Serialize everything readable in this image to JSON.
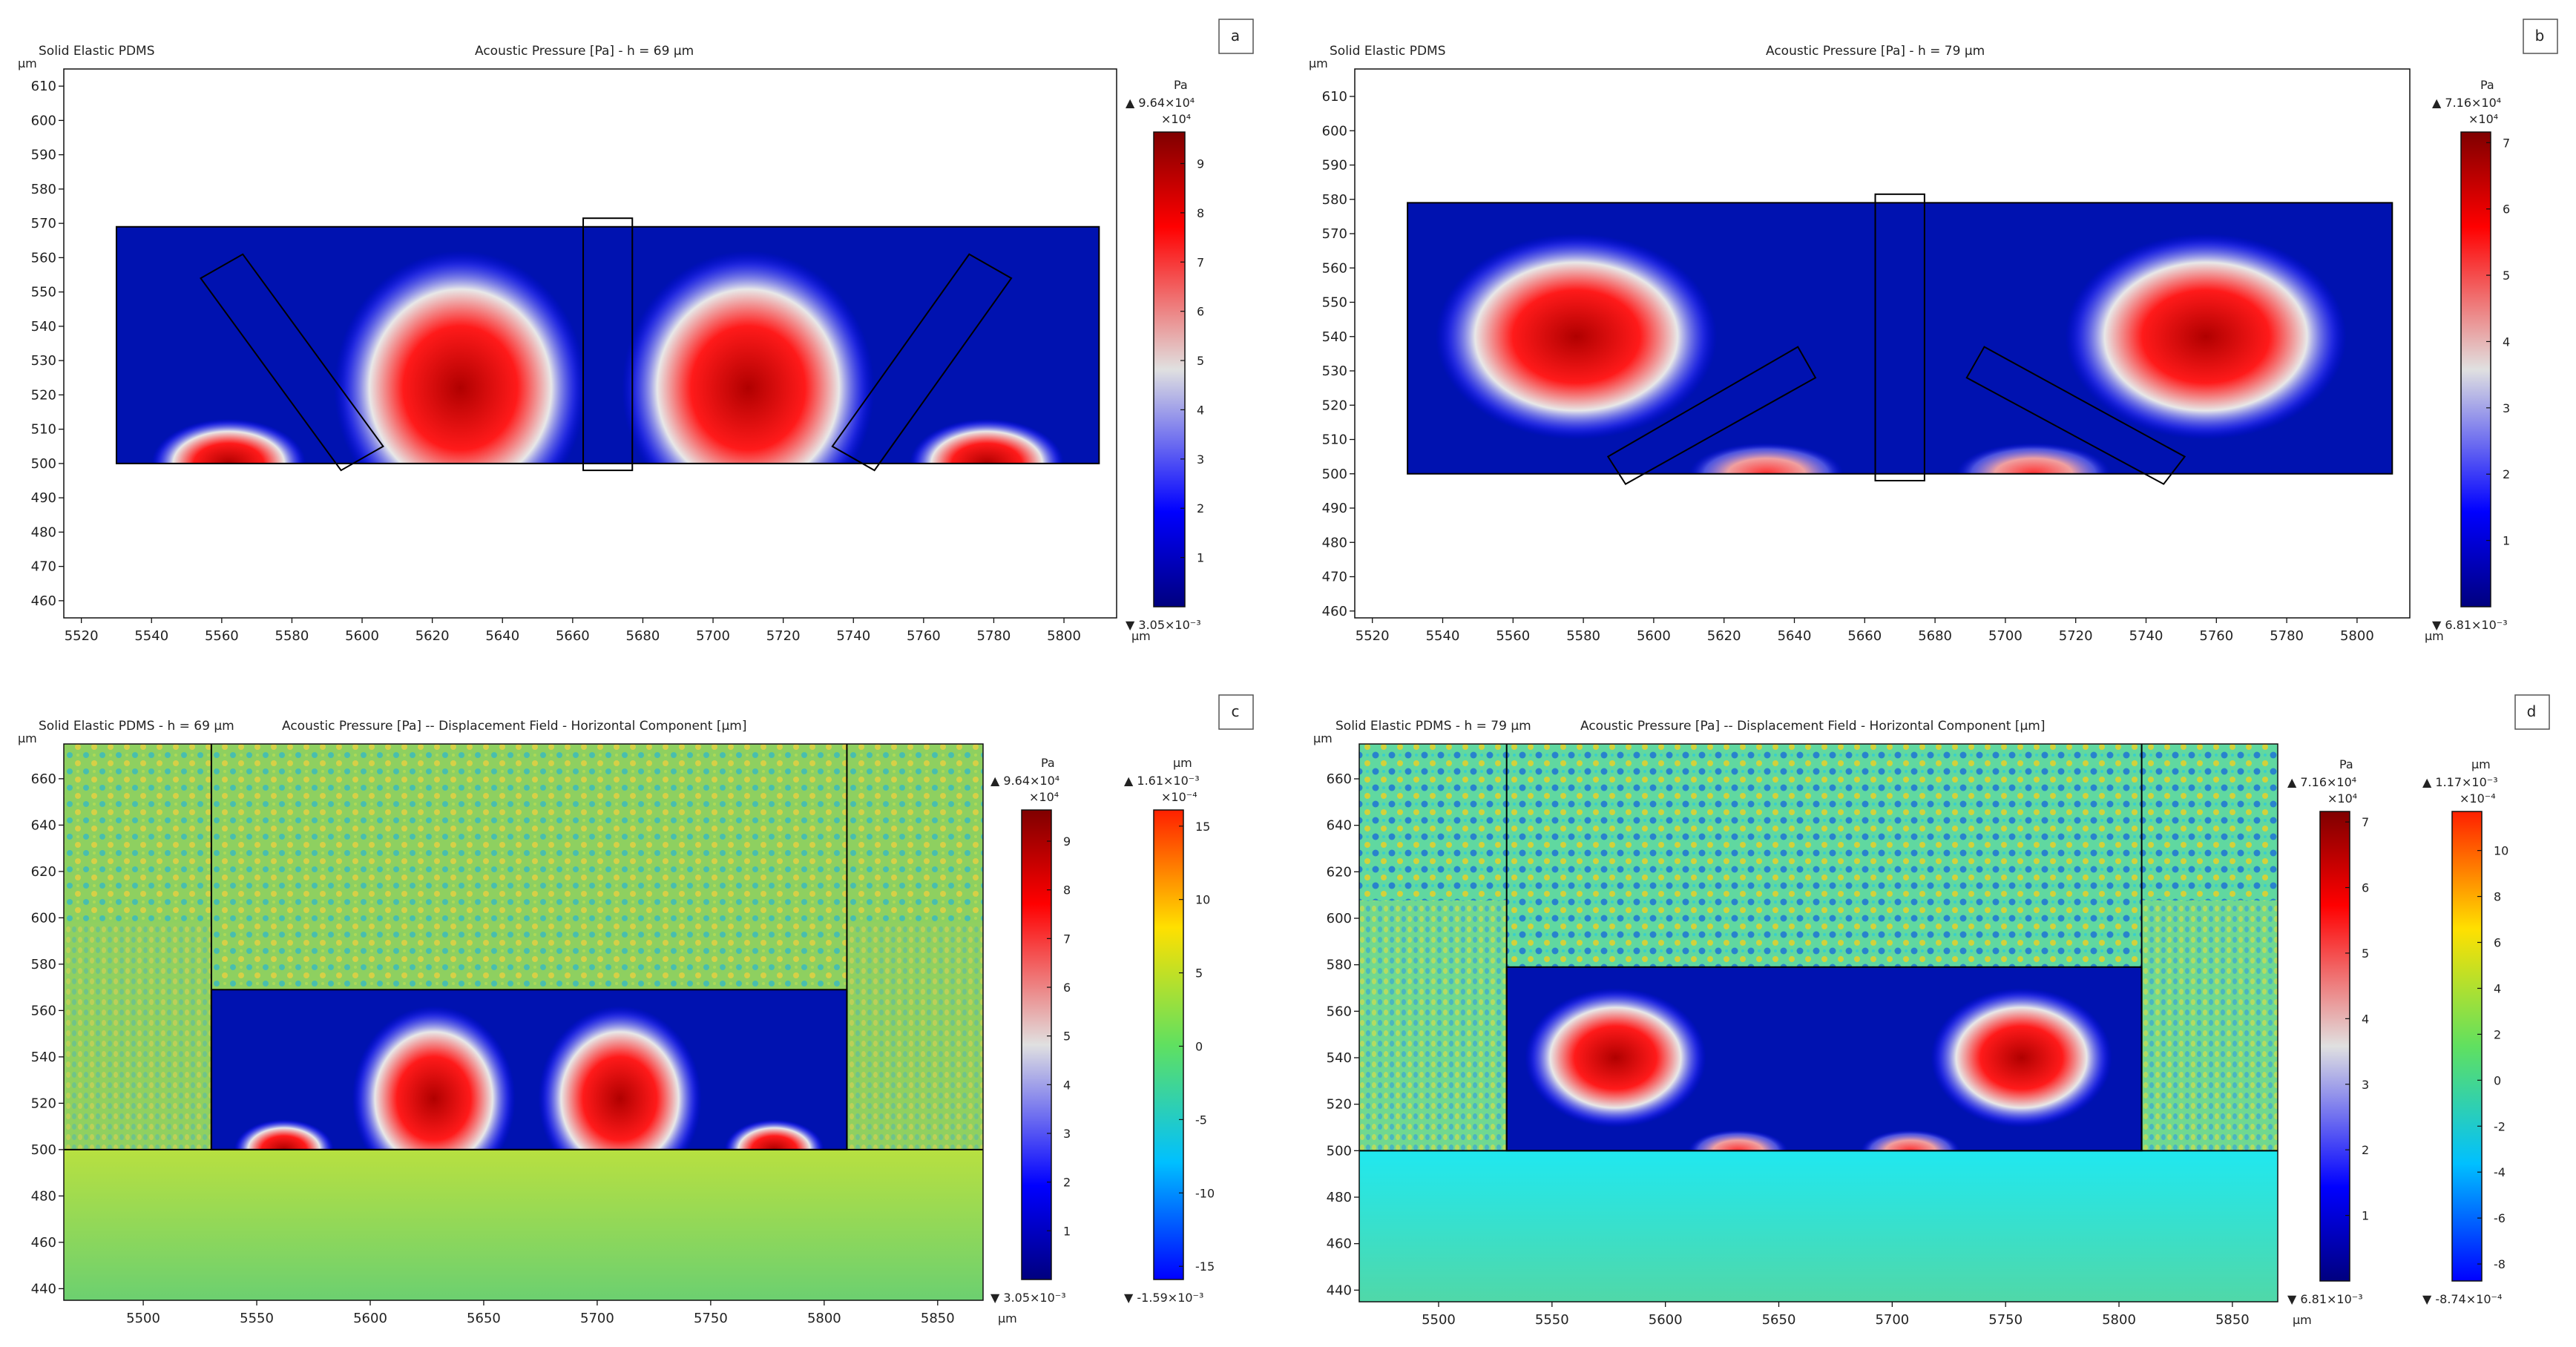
{
  "figure": {
    "panel_letters": [
      "a",
      "b",
      "c",
      "d"
    ]
  },
  "colors": {
    "blue_dark": "#00007f",
    "blue": "#0000ff",
    "white": "#e0e0e0",
    "red": "#ff0000",
    "red_dark": "#7f0000",
    "field_bg": "#7ccc58",
    "frame": "#000000"
  },
  "chart_data": [
    {
      "id": "a",
      "type": "heatmap",
      "subtitle": "Solid Elastic PDMS",
      "title": "Acoustic Pressure [Pa] - h = 69 µm",
      "x_unit": "µm",
      "y_unit": "µm",
      "xlim": [
        5515,
        5815
      ],
      "ylim": [
        455,
        615
      ],
      "xticks": [
        5520,
        5540,
        5560,
        5580,
        5600,
        5620,
        5640,
        5660,
        5680,
        5700,
        5720,
        5740,
        5760,
        5780,
        5800
      ],
      "yticks": [
        460,
        470,
        480,
        490,
        500,
        510,
        520,
        530,
        540,
        550,
        560,
        570,
        580,
        590,
        600,
        610
      ],
      "channel": {
        "x0": 5530,
        "x1": 5810,
        "y0": 500,
        "y1": 569
      },
      "lobes": [
        {
          "x": 5628,
          "y": 522,
          "rx": 36,
          "ry": 40,
          "peak": 9.5
        },
        {
          "x": 5710,
          "y": 522,
          "rx": 36,
          "ry": 40,
          "peak": 9.5
        },
        {
          "x": 5562,
          "y": 500,
          "rx": 22,
          "ry": 13,
          "peak": 6.0
        },
        {
          "x": 5778,
          "y": 500,
          "rx": 22,
          "ry": 13,
          "peak": 6.0
        }
      ],
      "colorbars": [
        {
          "unit": "Pa",
          "max_label": "▲ 9.64×10⁴",
          "exponent": "×10⁴",
          "min_label": "▼ 3.05×10⁻³",
          "ticks": [
            1,
            2,
            3,
            4,
            5,
            6,
            7,
            8,
            9
          ],
          "range": [
            0,
            9.64
          ],
          "map": "pressure"
        }
      ]
    },
    {
      "id": "b",
      "type": "heatmap",
      "subtitle": "Solid Elastic PDMS",
      "title": "Acoustic Pressure [Pa] - h = 79 µm",
      "x_unit": "µm",
      "y_unit": "µm",
      "xlim": [
        5515,
        5815
      ],
      "ylim": [
        458,
        618
      ],
      "xticks": [
        5520,
        5540,
        5560,
        5580,
        5600,
        5620,
        5640,
        5660,
        5680,
        5700,
        5720,
        5740,
        5760,
        5780,
        5800
      ],
      "yticks": [
        460,
        470,
        480,
        490,
        500,
        510,
        520,
        530,
        540,
        550,
        560,
        570,
        580,
        590,
        600,
        610
      ],
      "channel": {
        "x0": 5530,
        "x1": 5810,
        "y0": 500,
        "y1": 579
      },
      "lobes": [
        {
          "x": 5578,
          "y": 540,
          "rx": 40,
          "ry": 30,
          "peak": 7.1
        },
        {
          "x": 5757,
          "y": 540,
          "rx": 40,
          "ry": 30,
          "peak": 7.1
        },
        {
          "x": 5632,
          "y": 500,
          "rx": 22,
          "ry": 9,
          "peak": 3.5
        },
        {
          "x": 5708,
          "y": 500,
          "rx": 22,
          "ry": 9,
          "peak": 3.5
        }
      ],
      "colorbars": [
        {
          "unit": "Pa",
          "max_label": "▲ 7.16×10⁴",
          "exponent": "×10⁴",
          "min_label": "▼ 6.81×10⁻³",
          "ticks": [
            1,
            2,
            3,
            4,
            5,
            6,
            7
          ],
          "range": [
            0,
            7.16
          ],
          "map": "pressure"
        }
      ]
    },
    {
      "id": "c",
      "type": "heatmap",
      "subtitle": "Solid Elastic PDMS - h = 69 µm",
      "title": "Acoustic Pressure [Pa] -- Displacement Field - Horizontal Component [µm]",
      "x_unit": "µm",
      "y_unit": "µm",
      "xlim": [
        5465,
        5870
      ],
      "ylim": [
        435,
        675
      ],
      "xticks": [
        5500,
        5550,
        5600,
        5650,
        5700,
        5750,
        5800,
        5850
      ],
      "yticks": [
        440,
        460,
        480,
        500,
        520,
        540,
        560,
        580,
        600,
        620,
        640,
        660
      ],
      "channel": {
        "x0": 5530,
        "x1": 5810,
        "y0": 500,
        "y1": 569
      },
      "walls_x": [
        5530,
        5810
      ],
      "lobes": [
        {
          "x": 5628,
          "y": 522,
          "rx": 36,
          "ry": 40,
          "peak": 9.5
        },
        {
          "x": 5710,
          "y": 522,
          "rx": 36,
          "ry": 40,
          "peak": 9.5
        },
        {
          "x": 5562,
          "y": 500,
          "rx": 22,
          "ry": 13,
          "peak": 6.0
        },
        {
          "x": 5778,
          "y": 500,
          "rx": 22,
          "ry": 13,
          "peak": 6.0
        }
      ],
      "colorbars": [
        {
          "unit": "Pa",
          "max_label": "▲ 9.64×10⁴",
          "exponent": "×10⁴",
          "min_label": "▼ 3.05×10⁻³",
          "ticks": [
            1,
            2,
            3,
            4,
            5,
            6,
            7,
            8,
            9
          ],
          "range": [
            0,
            9.64
          ],
          "map": "pressure"
        },
        {
          "unit": "µm",
          "max_label": "▲ 1.61×10⁻³",
          "exponent": "×10⁻⁴",
          "min_label": "▼ -1.59×10⁻³",
          "ticks": [
            -15,
            -10,
            -5,
            0,
            5,
            10,
            15
          ],
          "range": [
            -15.9,
            16.1
          ],
          "map": "jet"
        }
      ]
    },
    {
      "id": "d",
      "type": "heatmap",
      "subtitle": "Solid Elastic PDMS - h = 79 µm",
      "title": "Acoustic Pressure [Pa] -- Displacement Field - Horizontal Component [µm]",
      "x_unit": "µm",
      "y_unit": "µm",
      "xlim": [
        5465,
        5870
      ],
      "ylim": [
        435,
        675
      ],
      "xticks": [
        5500,
        5550,
        5600,
        5650,
        5700,
        5750,
        5800,
        5850
      ],
      "yticks": [
        440,
        460,
        480,
        500,
        520,
        540,
        560,
        580,
        600,
        620,
        640,
        660
      ],
      "channel": {
        "x0": 5530,
        "x1": 5810,
        "y0": 500,
        "y1": 579
      },
      "walls_x": [
        5530,
        5810
      ],
      "lobes": [
        {
          "x": 5578,
          "y": 540,
          "rx": 40,
          "ry": 30,
          "peak": 7.1
        },
        {
          "x": 5757,
          "y": 540,
          "rx": 40,
          "ry": 30,
          "peak": 7.1
        },
        {
          "x": 5632,
          "y": 500,
          "rx": 22,
          "ry": 9,
          "peak": 3.5
        },
        {
          "x": 5708,
          "y": 500,
          "rx": 22,
          "ry": 9,
          "peak": 3.5
        }
      ],
      "colorbars": [
        {
          "unit": "Pa",
          "max_label": "▲ 7.16×10⁴",
          "exponent": "×10⁴",
          "min_label": "▼ 6.81×10⁻³",
          "ticks": [
            1,
            2,
            3,
            4,
            5,
            6,
            7
          ],
          "range": [
            0,
            7.16
          ],
          "map": "pressure"
        },
        {
          "unit": "µm",
          "max_label": "▲ 1.17×10⁻³",
          "exponent": "×10⁻⁴",
          "min_label": "▼ -8.74×10⁻⁴",
          "ticks": [
            -8,
            -6,
            -4,
            -2,
            0,
            2,
            4,
            6,
            8,
            10
          ],
          "range": [
            -8.74,
            11.7
          ],
          "map": "jet"
        }
      ]
    }
  ]
}
